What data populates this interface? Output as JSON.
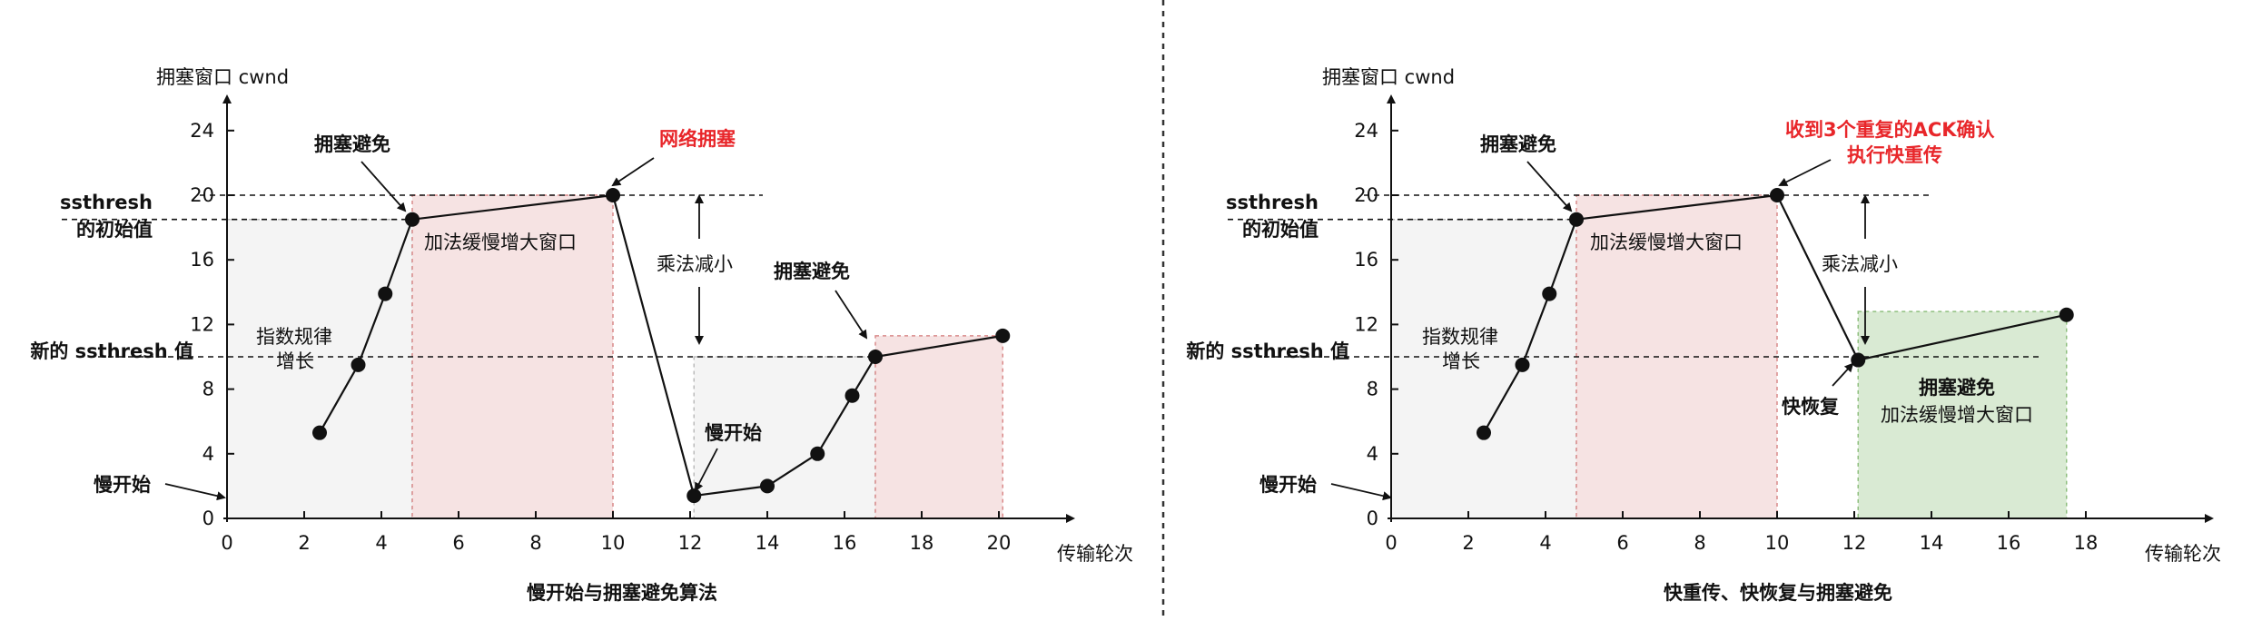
{
  "colors": {
    "pink_fill": "#f6e3e3",
    "pink_stroke": "#d98a8a",
    "gray_fill": "#f4f4f4",
    "gray_stroke": "#bbbbbb",
    "green_fill": "#d9ead3",
    "green_stroke": "#8fbf7f",
    "red_text": "#e8262a"
  },
  "chart_data": [
    {
      "type": "line",
      "title": "慢开始与拥塞避免算法",
      "xlabel": "传输轮次",
      "ylabel": "拥塞窗口 cwnd",
      "xlim": [
        0,
        22
      ],
      "ylim": [
        0,
        26
      ],
      "xticks": [
        "0",
        "2",
        "4",
        "6",
        "8",
        "10",
        "12",
        "14",
        "16",
        "18",
        "20"
      ],
      "yticks": [
        "0",
        "4",
        "8",
        "12",
        "16",
        "20",
        "24"
      ],
      "ssthresh_initial": 18.5,
      "ssthresh_new": 10,
      "ssthresh_initial_label": [
        "ssthresh",
        "的初始值"
      ],
      "ssthresh_new_label": "新的 ssthresh 值",
      "series": [
        {
          "x": [
            2.4,
            3.4,
            4.1,
            4.8,
            10,
            12.1,
            14,
            15.3,
            16.2,
            16.8,
            20.1
          ],
          "y": [
            5.3,
            9.5,
            13.9,
            18.5,
            20,
            1.4,
            2,
            4,
            7.6,
            10,
            11.3
          ]
        }
      ],
      "annotations": {
        "slow_start": "慢开始",
        "congestion_avoid_1": "拥塞避免",
        "network_congestion": "网络拥塞",
        "additive_increase": "加法缓慢增大窗口",
        "multiplicative_decrease": "乘法减小",
        "exp_growth": [
          "指数规律",
          "增长"
        ],
        "slow_start_2": "慢开始",
        "congestion_avoid_2": "拥塞避免"
      }
    },
    {
      "type": "line",
      "title": "快重传、快恢复与拥塞避免",
      "xlabel": "传输轮次",
      "ylabel": "拥塞窗口 cwnd",
      "xlim": [
        0,
        21
      ],
      "ylim": [
        0,
        26
      ],
      "xticks": [
        "0",
        "2",
        "4",
        "6",
        "8",
        "10",
        "12",
        "14",
        "16",
        "18"
      ],
      "yticks": [
        "0",
        "4",
        "8",
        "12",
        "16",
        "20",
        "24"
      ],
      "ssthresh_initial": 18.5,
      "ssthresh_new": 10,
      "ssthresh_initial_label": [
        "ssthresh",
        "的初始值"
      ],
      "ssthresh_new_label": "新的 ssthresh 值",
      "series": [
        {
          "x": [
            2.4,
            3.4,
            4.1,
            4.8,
            10,
            12.1,
            17.5
          ],
          "y": [
            5.3,
            9.5,
            13.9,
            18.5,
            20,
            9.8,
            12.6
          ]
        }
      ],
      "annotations": {
        "slow_start": "慢开始",
        "congestion_avoid_1": "拥塞避免",
        "triple_ack": [
          "收到3个重复的ACK确认",
          "执行快重传"
        ],
        "additive_increase": "加法缓慢增大窗口",
        "multiplicative_decrease": "乘法减小",
        "exp_growth": [
          "指数规律",
          "增长"
        ],
        "fast_recovery": "快恢复",
        "green_box": [
          "拥塞避免",
          "加法缓慢增大窗口"
        ]
      }
    }
  ]
}
